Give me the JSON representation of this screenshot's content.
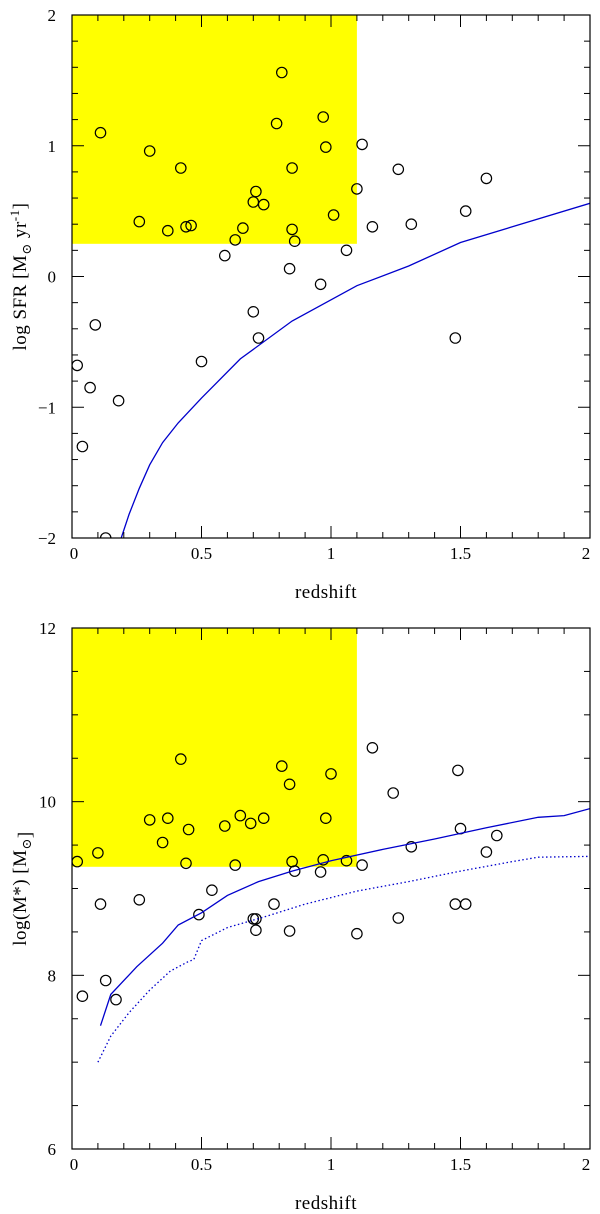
{
  "chart_data": [
    {
      "type": "scatter",
      "xlabel": "redshift",
      "ylabel": {
        "prefix": "log  SFR  [M",
        "sub": "⊙",
        "mid": " yr",
        "sup": "-1",
        "suffix": "]"
      },
      "xlim": [
        0,
        2
      ],
      "ylim": [
        -2,
        2
      ],
      "xticks": [
        0,
        0.5,
        1,
        1.5,
        2
      ],
      "xtick_labels": [
        "0",
        "0.5",
        "1",
        "1.5",
        "2"
      ],
      "yticks": [
        -2,
        -1,
        0,
        1,
        2
      ],
      "ytick_labels": [
        "−2",
        "−1",
        "0",
        "1",
        "2"
      ],
      "highlight_region": {
        "x": [
          0,
          1.1
        ],
        "y": [
          0.25,
          2
        ],
        "color": "#ffff00"
      },
      "series": [
        {
          "kind": "points",
          "marker": "open-circle",
          "points": [
            [
              0.02,
              -0.68
            ],
            [
              0.04,
              -1.3
            ],
            [
              0.07,
              -0.85
            ],
            [
              0.09,
              -0.37
            ],
            [
              0.11,
              1.1
            ],
            [
              0.13,
              -2.0
            ],
            [
              0.18,
              -0.95
            ],
            [
              0.26,
              0.42
            ],
            [
              0.3,
              0.96
            ],
            [
              0.37,
              0.35
            ],
            [
              0.42,
              0.83
            ],
            [
              0.44,
              0.38
            ],
            [
              0.46,
              0.39
            ],
            [
              0.5,
              -0.65
            ],
            [
              0.59,
              0.16
            ],
            [
              0.63,
              0.28
            ],
            [
              0.66,
              0.37
            ],
            [
              0.7,
              0.57
            ],
            [
              0.7,
              -0.27
            ],
            [
              0.71,
              0.65
            ],
            [
              0.72,
              -0.47
            ],
            [
              0.74,
              0.55
            ],
            [
              0.79,
              1.17
            ],
            [
              0.81,
              1.56
            ],
            [
              0.84,
              0.06
            ],
            [
              0.85,
              0.83
            ],
            [
              0.85,
              0.36
            ],
            [
              0.86,
              0.27
            ],
            [
              0.96,
              -0.06
            ],
            [
              0.97,
              1.22
            ],
            [
              0.98,
              0.99
            ],
            [
              1.01,
              0.47
            ],
            [
              1.06,
              0.2
            ],
            [
              1.1,
              0.67
            ],
            [
              1.12,
              1.01
            ],
            [
              1.16,
              0.38
            ],
            [
              1.26,
              0.82
            ],
            [
              1.31,
              0.4
            ],
            [
              1.48,
              -0.47
            ],
            [
              1.52,
              0.5
            ],
            [
              1.6,
              0.75
            ]
          ]
        },
        {
          "kind": "line",
          "style": "solid",
          "color": "#0000cc",
          "points": [
            [
              0.19,
              -2.0
            ],
            [
              0.22,
              -1.82
            ],
            [
              0.26,
              -1.62
            ],
            [
              0.3,
              -1.44
            ],
            [
              0.35,
              -1.27
            ],
            [
              0.41,
              -1.12
            ],
            [
              0.5,
              -0.93
            ],
            [
              0.65,
              -0.63
            ],
            [
              0.85,
              -0.34
            ],
            [
              1.1,
              -0.07
            ],
            [
              1.3,
              0.08
            ],
            [
              1.5,
              0.26
            ],
            [
              1.7,
              0.38
            ],
            [
              2.0,
              0.56
            ]
          ]
        }
      ]
    },
    {
      "type": "scatter",
      "xlabel": "redshift",
      "ylabel": {
        "prefix": "log(M*)  [M",
        "sub": "⊙",
        "mid": "",
        "sup": "",
        "suffix": "]"
      },
      "xlim": [
        0,
        2
      ],
      "ylim": [
        6,
        12
      ],
      "xticks": [
        0,
        0.5,
        1,
        1.5,
        2
      ],
      "xtick_labels": [
        "0",
        "0.5",
        "1",
        "1.5",
        "2"
      ],
      "yticks": [
        6,
        8,
        10,
        12
      ],
      "ytick_labels": [
        "6",
        "8",
        "10",
        "12"
      ],
      "highlight_region": {
        "x": [
          0,
          1.1
        ],
        "y": [
          9.25,
          12
        ],
        "color": "#ffff00"
      },
      "series": [
        {
          "kind": "points",
          "marker": "open-circle",
          "points": [
            [
              0.02,
              9.31
            ],
            [
              0.04,
              7.76
            ],
            [
              0.1,
              9.41
            ],
            [
              0.11,
              8.82
            ],
            [
              0.13,
              7.94
            ],
            [
              0.17,
              7.72
            ],
            [
              0.26,
              8.87
            ],
            [
              0.3,
              9.79
            ],
            [
              0.35,
              9.53
            ],
            [
              0.37,
              9.81
            ],
            [
              0.42,
              10.49
            ],
            [
              0.44,
              9.29
            ],
            [
              0.45,
              9.68
            ],
            [
              0.49,
              8.7
            ],
            [
              0.54,
              8.98
            ],
            [
              0.59,
              9.72
            ],
            [
              0.63,
              9.27
            ],
            [
              0.65,
              9.84
            ],
            [
              0.69,
              9.75
            ],
            [
              0.7,
              8.65
            ],
            [
              0.71,
              8.52
            ],
            [
              0.71,
              8.65
            ],
            [
              0.74,
              9.81
            ],
            [
              0.78,
              8.82
            ],
            [
              0.81,
              10.41
            ],
            [
              0.84,
              8.51
            ],
            [
              0.84,
              10.2
            ],
            [
              0.85,
              9.31
            ],
            [
              0.86,
              9.2
            ],
            [
              0.96,
              9.19
            ],
            [
              0.97,
              9.33
            ],
            [
              0.98,
              9.81
            ],
            [
              1.0,
              10.32
            ],
            [
              1.06,
              9.32
            ],
            [
              1.1,
              8.48
            ],
            [
              1.12,
              9.27
            ],
            [
              1.16,
              10.62
            ],
            [
              1.24,
              10.1
            ],
            [
              1.26,
              8.66
            ],
            [
              1.31,
              9.48
            ],
            [
              1.48,
              8.82
            ],
            [
              1.49,
              10.36
            ],
            [
              1.5,
              9.69
            ],
            [
              1.52,
              8.82
            ],
            [
              1.6,
              9.42
            ],
            [
              1.64,
              9.61
            ]
          ]
        },
        {
          "kind": "line",
          "style": "solid",
          "color": "#0000cc",
          "points": [
            [
              0.11,
              7.42
            ],
            [
              0.15,
              7.78
            ],
            [
              0.25,
              8.1
            ],
            [
              0.35,
              8.37
            ],
            [
              0.41,
              8.58
            ],
            [
              0.5,
              8.72
            ],
            [
              0.6,
              8.92
            ],
            [
              0.72,
              9.08
            ],
            [
              0.85,
              9.2
            ],
            [
              1.0,
              9.32
            ],
            [
              1.2,
              9.45
            ],
            [
              1.4,
              9.57
            ],
            [
              1.6,
              9.7
            ],
            [
              1.8,
              9.82
            ],
            [
              1.9,
              9.84
            ],
            [
              2.0,
              9.92
            ]
          ]
        },
        {
          "kind": "line",
          "style": "dotted",
          "color": "#0000cc",
          "points": [
            [
              0.1,
              7.0
            ],
            [
              0.15,
              7.3
            ],
            [
              0.22,
              7.57
            ],
            [
              0.3,
              7.83
            ],
            [
              0.38,
              8.05
            ],
            [
              0.45,
              8.16
            ],
            [
              0.47,
              8.18
            ],
            [
              0.5,
              8.4
            ],
            [
              0.6,
              8.55
            ],
            [
              0.75,
              8.68
            ],
            [
              0.9,
              8.82
            ],
            [
              1.1,
              8.97
            ],
            [
              1.3,
              9.08
            ],
            [
              1.5,
              9.2
            ],
            [
              1.7,
              9.31
            ],
            [
              1.8,
              9.36
            ],
            [
              2.0,
              9.37
            ]
          ]
        }
      ]
    }
  ]
}
